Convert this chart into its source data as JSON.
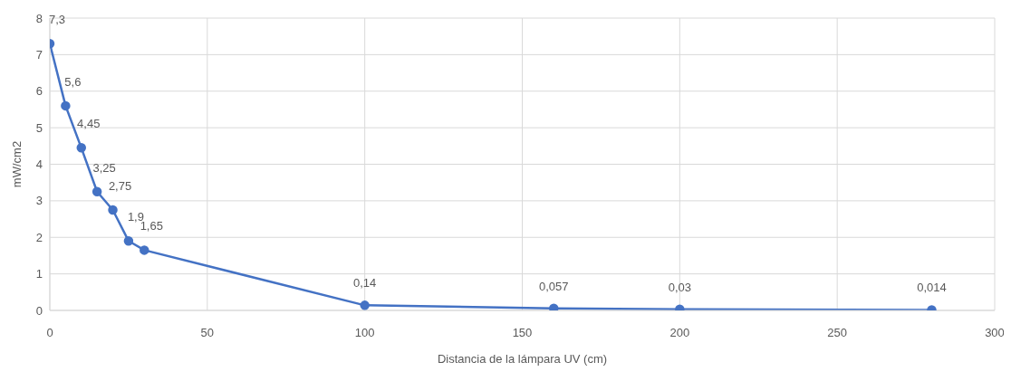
{
  "chart_data": {
    "type": "line",
    "xlabel": "Distancia de la lámpara UV (cm)",
    "ylabel": "mW/cm2",
    "x": [
      0,
      5,
      10,
      15,
      20,
      25,
      30,
      100,
      160,
      200,
      280
    ],
    "series": [
      {
        "color": "#4472c4",
        "values": [
          7.3,
          5.6,
          4.45,
          3.25,
          2.75,
          1.9,
          1.65,
          0.14,
          0.057,
          0.03,
          0.014
        ],
        "value_labels": [
          "7,3",
          "5,6",
          "4,45",
          "3,25",
          "2,75",
          "1,9",
          "1,65",
          "0,14",
          "0,057",
          "0,03",
          "0,014"
        ]
      }
    ],
    "xlim": [
      0,
      300
    ],
    "xticks": [
      0,
      50,
      100,
      150,
      200,
      250,
      300
    ],
    "ylim": [
      0,
      8
    ],
    "yticks": [
      0,
      1,
      2,
      3,
      4,
      5,
      6,
      7,
      8
    ],
    "grid": true,
    "marker": "circle",
    "line_style": "solid"
  }
}
